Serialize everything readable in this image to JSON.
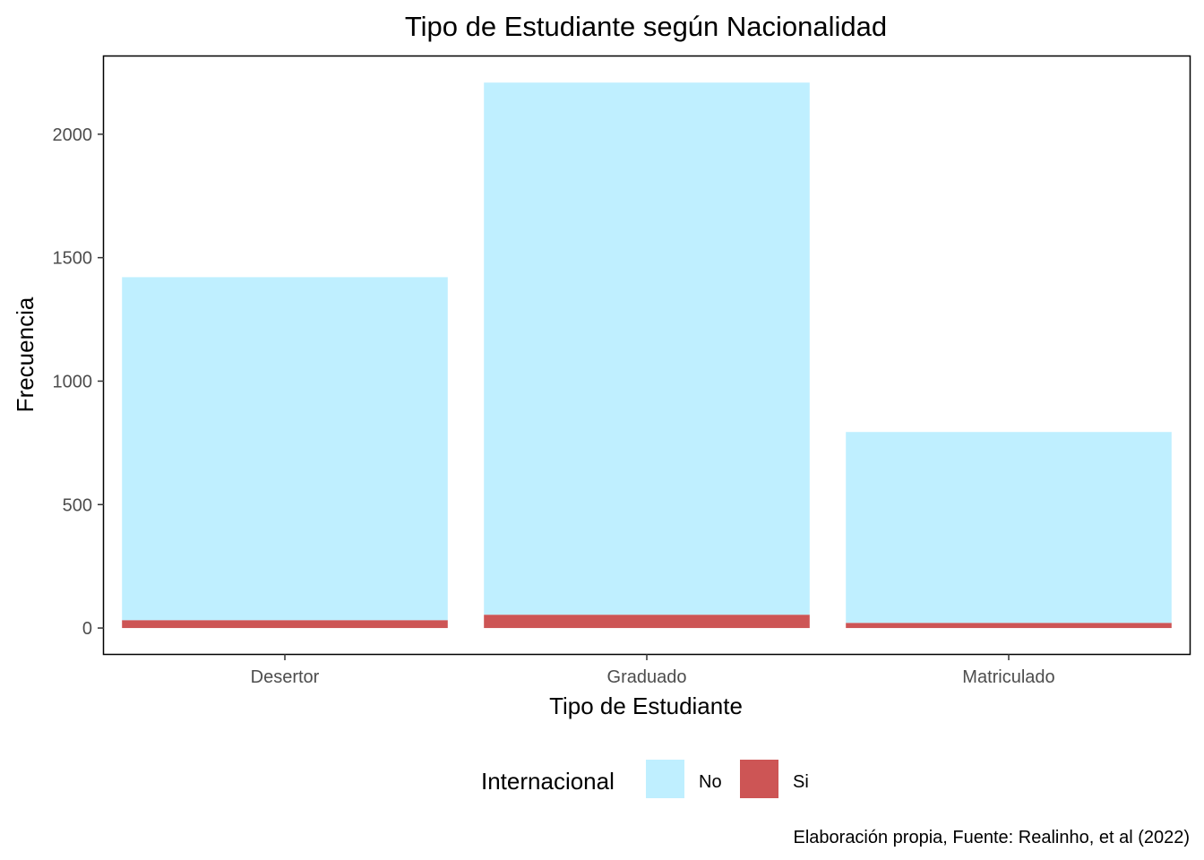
{
  "chart_data": {
    "type": "bar",
    "stacked": true,
    "title": "Tipo de Estudiante según Nacionalidad",
    "xlabel": "Tipo de Estudiante",
    "ylabel": "Frecuencia",
    "categories": [
      "Desertor",
      "Graduado",
      "Matriculado"
    ],
    "series": [
      {
        "name": "No",
        "color": "#BFEFFF",
        "values": [
          1389,
          2155,
          773
        ]
      },
      {
        "name": "Si",
        "color": "#CD5555",
        "values": [
          32,
          54,
          21
        ]
      }
    ],
    "ylim": [
      -105,
      2315
    ],
    "yticks": [
      0,
      500,
      1000,
      1500,
      2000
    ],
    "legend": {
      "title": "Internacional",
      "position": "bottom"
    },
    "grid": false,
    "caption": "Elaboración propia, Fuente: Realinho, et al (2022)"
  }
}
